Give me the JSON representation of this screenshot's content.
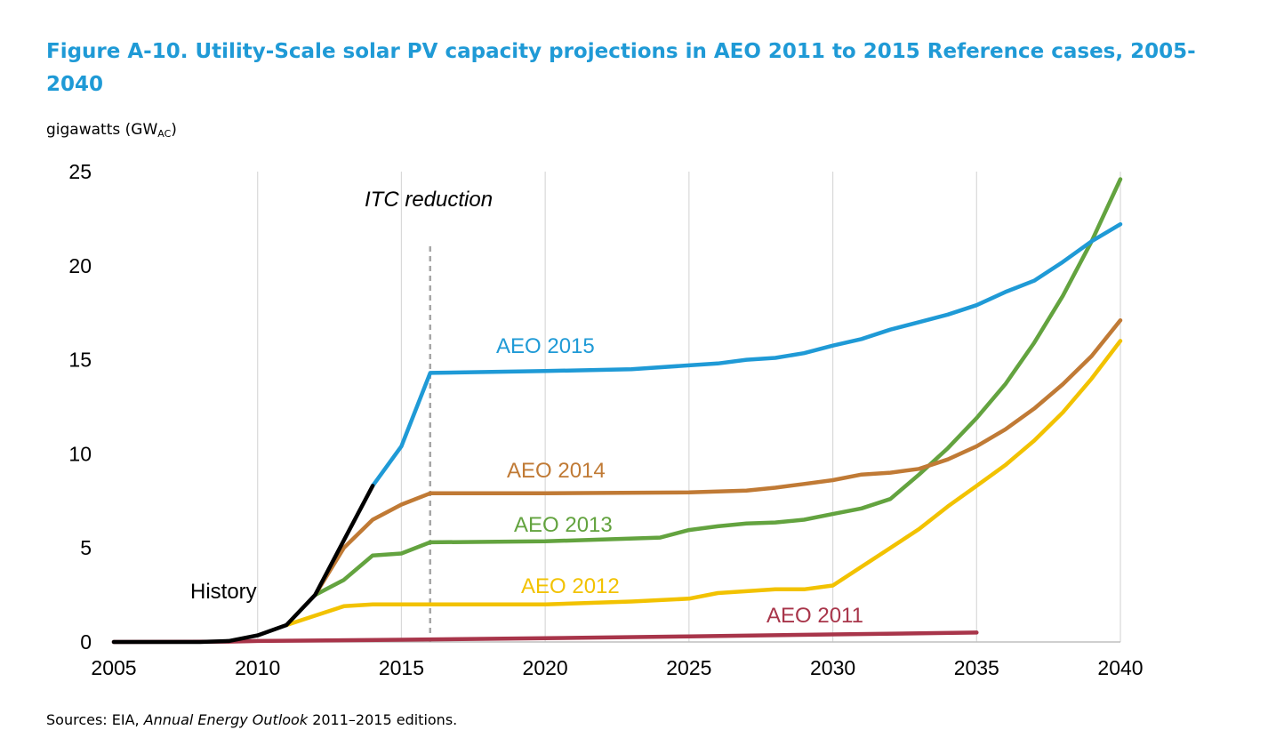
{
  "title": "Figure A-10. Utility-Scale solar PV capacity projections in AEO 2011 to 2015 Reference cases, 2005-2040",
  "units": {
    "main": "gigawatts (GW",
    "sub": "AC",
    "close": ")"
  },
  "source": {
    "prefix": "Sources: EIA, ",
    "italic": "Annual Energy Outlook",
    "suffix": " 2011–2015 editions."
  },
  "chart_data": {
    "type": "line",
    "xlim": [
      2005,
      2040
    ],
    "ylim": [
      0,
      25
    ],
    "x_ticks": [
      2005,
      2010,
      2015,
      2020,
      2025,
      2030,
      2035,
      2040
    ],
    "y_ticks": [
      0,
      5,
      10,
      15,
      20,
      25
    ],
    "grid": {
      "horizontal": false,
      "vertical": true
    },
    "annotations": [
      {
        "text": "ITC reduction",
        "x": 2016,
        "style": "dashed-vertical-line"
      }
    ],
    "series": [
      {
        "name": "History",
        "color": "#000000",
        "x": [
          2005,
          2006,
          2007,
          2008,
          2009,
          2010,
          2011,
          2012,
          2013,
          2014
        ],
        "y": [
          0,
          0,
          0,
          0,
          0.05,
          0.35,
          0.9,
          2.5,
          5.4,
          8.3
        ]
      },
      {
        "name": "AEO 2011",
        "color": "#A8354A",
        "x": [
          2005,
          2009,
          2010,
          2015,
          2020,
          2025,
          2030,
          2035
        ],
        "y": [
          0,
          0.02,
          0.05,
          0.12,
          0.2,
          0.3,
          0.4,
          0.5
        ]
      },
      {
        "name": "AEO 2012",
        "color": "#F2C200",
        "x": [
          2011,
          2012,
          2013,
          2014,
          2015,
          2016,
          2020,
          2023,
          2025,
          2026,
          2028,
          2029,
          2030,
          2031,
          2032,
          2033,
          2034,
          2035,
          2036,
          2037,
          2038,
          2039,
          2040
        ],
        "y": [
          0.9,
          1.4,
          1.9,
          2.0,
          2.0,
          2.0,
          2.0,
          2.15,
          2.3,
          2.6,
          2.8,
          2.8,
          3.0,
          4.0,
          5.0,
          6.0,
          7.2,
          8.3,
          9.4,
          10.7,
          12.2,
          14.0,
          16.0
        ]
      },
      {
        "name": "AEO 2013",
        "color": "#63A33F",
        "x": [
          2012,
          2013,
          2014,
          2015,
          2016,
          2020,
          2024,
          2025,
          2026,
          2027,
          2028,
          2029,
          2030,
          2031,
          2032,
          2033,
          2034,
          2035,
          2036,
          2037,
          2038,
          2039,
          2040
        ],
        "y": [
          2.5,
          3.3,
          4.6,
          4.7,
          5.3,
          5.35,
          5.55,
          5.95,
          6.15,
          6.3,
          6.35,
          6.5,
          6.8,
          7.1,
          7.6,
          8.9,
          10.3,
          11.9,
          13.7,
          15.9,
          18.4,
          21.3,
          24.6
        ]
      },
      {
        "name": "AEO 2014",
        "color": "#C07A35",
        "x": [
          2012,
          2013,
          2014,
          2015,
          2016,
          2020,
          2025,
          2027,
          2028,
          2029,
          2030,
          2031,
          2032,
          2033,
          2034,
          2035,
          2036,
          2037,
          2038,
          2039,
          2040
        ],
        "y": [
          2.5,
          5.0,
          6.5,
          7.3,
          7.9,
          7.9,
          7.95,
          8.05,
          8.2,
          8.4,
          8.6,
          8.9,
          9.0,
          9.2,
          9.7,
          10.4,
          11.3,
          12.4,
          13.7,
          15.2,
          17.1
        ]
      },
      {
        "name": "AEO 2015",
        "color": "#1F9AD6",
        "x": [
          2014,
          2015,
          2016,
          2020,
          2023,
          2025,
          2026,
          2027,
          2028,
          2029,
          2030,
          2031,
          2032,
          2033,
          2034,
          2035,
          2036,
          2037,
          2038,
          2039,
          2040
        ],
        "y": [
          8.3,
          10.4,
          14.3,
          14.4,
          14.5,
          14.7,
          14.8,
          15.0,
          15.1,
          15.35,
          15.75,
          16.1,
          16.6,
          17.0,
          17.4,
          17.9,
          18.6,
          19.2,
          20.2,
          21.3,
          22.2
        ]
      }
    ],
    "labels": [
      {
        "series": "History",
        "text": "History"
      },
      {
        "series": "AEO 2011",
        "text": "AEO 2011"
      },
      {
        "series": "AEO 2012",
        "text": "AEO 2012"
      },
      {
        "series": "AEO 2013",
        "text": "AEO 2013"
      },
      {
        "series": "AEO 2014",
        "text": "AEO 2014"
      },
      {
        "series": "AEO 2015",
        "text": "AEO 2015"
      }
    ]
  }
}
